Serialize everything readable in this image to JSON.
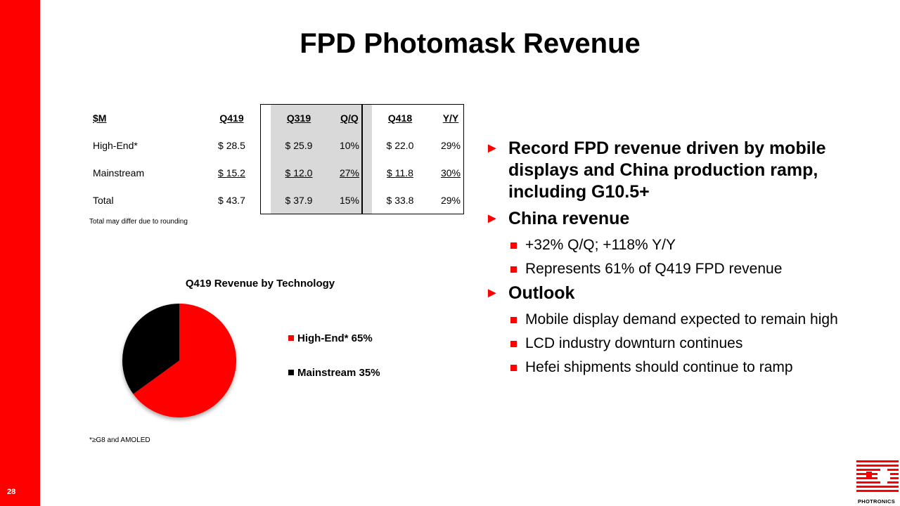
{
  "slide": {
    "number": "28",
    "title": "FPD Photomask Revenue"
  },
  "table": {
    "headers": [
      "$M",
      "Q419",
      "Q319",
      "Q/Q",
      "Q418",
      "Y/Y"
    ],
    "rows": [
      [
        "High-End*",
        "$ 28.5",
        "$ 25.9",
        "10%",
        "$ 22.0",
        "29%"
      ],
      [
        "Mainstream",
        "$ 15.2",
        "$ 12.0",
        "27%",
        "$ 11.8",
        "30%"
      ],
      [
        "Total",
        "$ 43.7",
        "$ 37.9",
        "15%",
        "$ 33.8",
        "29%"
      ]
    ],
    "note": "Total may differ due to rounding"
  },
  "chart_data": {
    "type": "pie",
    "title": "Q419 Revenue by Technology",
    "categories": [
      "High-End*",
      "Mainstream"
    ],
    "values": [
      65,
      35
    ],
    "labels": [
      "High-End* 65%",
      "Mainstream 35%"
    ],
    "colors": [
      "#ff0000",
      "#000000"
    ],
    "legend": "right"
  },
  "footnote": "*≥G8 and AMOLED",
  "bullets": [
    {
      "text": "Record FPD revenue driven by mobile displays and China production ramp, including G10.5+",
      "sub": []
    },
    {
      "text": "China revenue",
      "sub": [
        "+32% Q/Q; +118% Y/Y",
        "Represents 61% of Q419 FPD revenue"
      ]
    },
    {
      "text": "Outlook",
      "sub": [
        "Mobile display demand expected to remain high",
        "LCD industry downturn continues",
        "Hefei shipments should continue to ramp"
      ]
    }
  ],
  "logo": {
    "text": "PHOTRONICS"
  },
  "colors": {
    "accent": "#ff0000",
    "shade": "#d9d9d9"
  }
}
